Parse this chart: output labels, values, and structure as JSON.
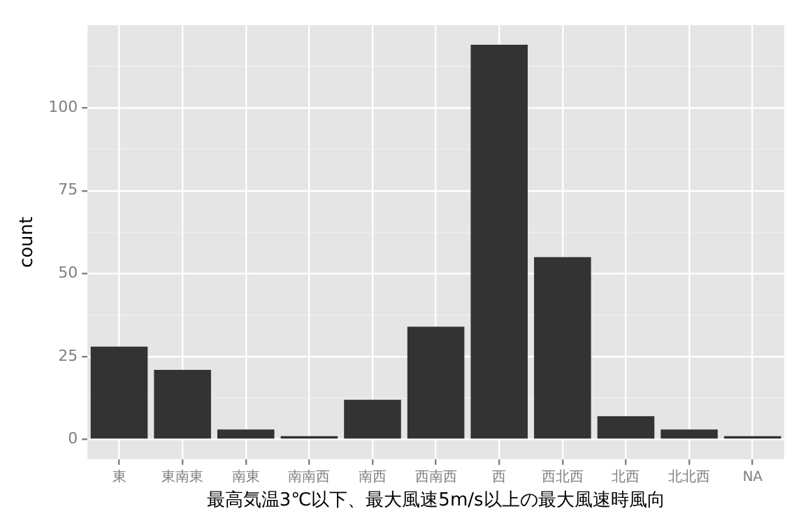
{
  "chart_data": {
    "type": "bar",
    "xlabel": "最高気温3℃以下、最大風速5m/s以上の最大風速時風向",
    "ylabel": "count",
    "categories": [
      "東",
      "東南東",
      "南東",
      "南南西",
      "南西",
      "西南西",
      "西",
      "西北西",
      "北西",
      "北北西",
      "NA"
    ],
    "values": [
      28,
      21,
      3,
      1,
      12,
      34,
      119,
      55,
      7,
      3,
      1
    ],
    "color": "#333333",
    "ylim": [
      -5.95,
      124.9
    ],
    "yticks": [
      0,
      25,
      50,
      75,
      100
    ],
    "grid": true,
    "legend": false
  }
}
